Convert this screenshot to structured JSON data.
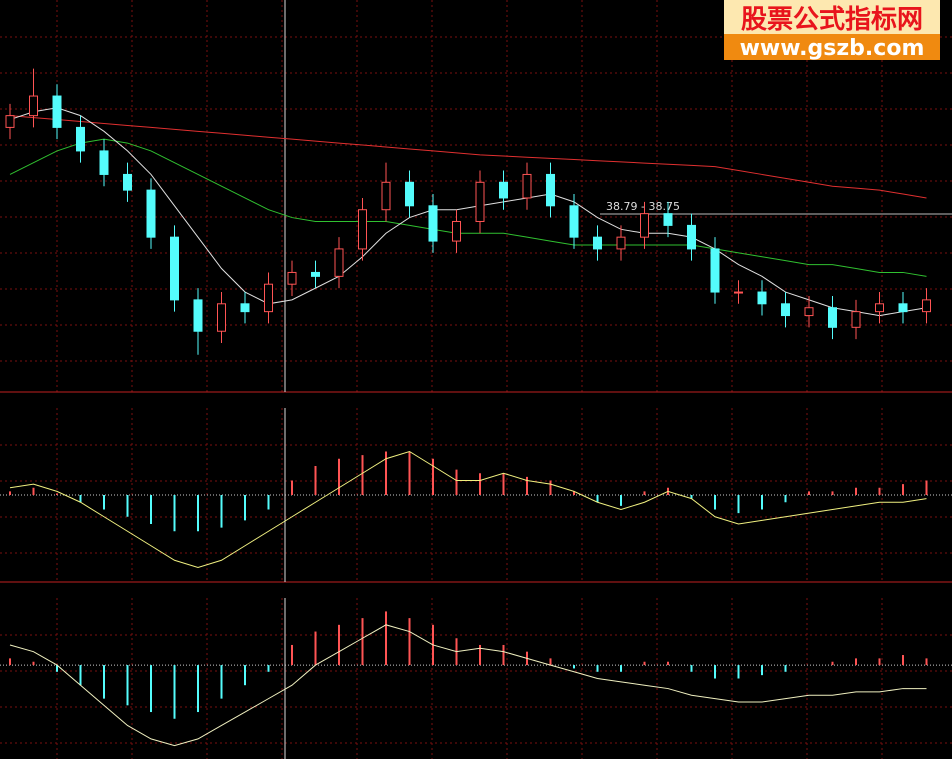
{
  "watermark": {
    "title": "股票公式指标网",
    "url": "www.gszb.com"
  },
  "chart_data": {
    "type": "candlestick",
    "price_label": "38.79 - 38.75",
    "price_line": 38.79,
    "ylim": [
      34.25,
      44.25
    ],
    "open": [
      41.0,
      41.3,
      41.8,
      41.0,
      40.4,
      39.8,
      39.4,
      38.2,
      36.6,
      35.8,
      36.5,
      36.3,
      37.0,
      37.3,
      37.2,
      37.9,
      38.9,
      39.6,
      39.0,
      38.1,
      38.6,
      39.6,
      39.2,
      39.8,
      39.0,
      38.2,
      37.9,
      38.2,
      38.8,
      38.5,
      37.9,
      36.8,
      36.8,
      36.5,
      36.2,
      36.4,
      35.9,
      36.3,
      36.5,
      36.3
    ],
    "high": [
      41.6,
      42.5,
      42.1,
      41.3,
      40.7,
      40.1,
      39.7,
      38.5,
      36.9,
      36.8,
      36.8,
      37.3,
      37.6,
      37.6,
      38.2,
      39.2,
      40.1,
      39.9,
      39.3,
      38.9,
      39.9,
      39.9,
      40.1,
      40.1,
      39.3,
      38.5,
      38.5,
      39.1,
      39.1,
      38.8,
      38.2,
      37.1,
      37.1,
      36.8,
      36.7,
      36.7,
      36.6,
      36.8,
      36.8,
      36.9
    ],
    "low": [
      40.7,
      41.0,
      40.7,
      40.1,
      39.5,
      39.1,
      37.9,
      36.3,
      35.2,
      35.5,
      36.0,
      36.0,
      36.7,
      36.9,
      36.9,
      37.6,
      38.6,
      38.7,
      37.8,
      37.8,
      38.3,
      38.9,
      38.9,
      38.7,
      37.9,
      37.6,
      37.6,
      37.9,
      38.2,
      37.6,
      36.5,
      36.5,
      36.2,
      35.9,
      35.9,
      35.6,
      35.6,
      36.0,
      36.0,
      36.0
    ],
    "close": [
      41.3,
      41.8,
      41.0,
      40.4,
      39.8,
      39.4,
      38.2,
      36.6,
      35.8,
      36.5,
      36.3,
      37.0,
      37.3,
      37.2,
      37.9,
      38.9,
      39.6,
      39.0,
      38.1,
      38.6,
      39.6,
      39.2,
      39.8,
      39.0,
      38.2,
      37.9,
      38.2,
      38.8,
      38.5,
      37.9,
      36.8,
      36.8,
      36.5,
      36.2,
      36.4,
      35.9,
      36.3,
      36.5,
      36.3,
      36.6
    ],
    "up_color": "#ff5454",
    "down_color": "#54fcfc",
    "lines": [
      {
        "color": "#e03030",
        "values": [
          41.3,
          41.25,
          41.2,
          41.15,
          41.1,
          41.05,
          41.0,
          40.95,
          40.9,
          40.85,
          40.8,
          40.75,
          40.7,
          40.65,
          40.6,
          40.55,
          40.5,
          40.45,
          40.4,
          40.35,
          40.3,
          40.27,
          40.24,
          40.21,
          40.18,
          40.15,
          40.12,
          40.09,
          40.06,
          40.03,
          40.0,
          39.9,
          39.8,
          39.7,
          39.6,
          39.5,
          39.45,
          39.4,
          39.3,
          39.2
        ]
      },
      {
        "color": "#30c030",
        "values": [
          39.8,
          40.1,
          40.4,
          40.6,
          40.7,
          40.6,
          40.4,
          40.1,
          39.8,
          39.5,
          39.2,
          38.9,
          38.7,
          38.6,
          38.6,
          38.6,
          38.6,
          38.5,
          38.4,
          38.3,
          38.3,
          38.3,
          38.2,
          38.1,
          38.0,
          38.0,
          38.0,
          38.0,
          38.0,
          38.0,
          37.9,
          37.8,
          37.7,
          37.6,
          37.5,
          37.5,
          37.4,
          37.3,
          37.3,
          37.2
        ]
      },
      {
        "color": "#e0e0e0",
        "values": [
          41.2,
          41.4,
          41.5,
          41.3,
          40.9,
          40.4,
          39.8,
          39.0,
          38.2,
          37.4,
          36.8,
          36.5,
          36.6,
          36.9,
          37.2,
          37.7,
          38.3,
          38.7,
          38.9,
          38.9,
          39.0,
          39.1,
          39.2,
          39.3,
          39.1,
          38.7,
          38.4,
          38.3,
          38.3,
          38.2,
          37.9,
          37.5,
          37.2,
          36.8,
          36.6,
          36.4,
          36.3,
          36.2,
          36.3,
          36.4
        ]
      }
    ],
    "indicators": [
      {
        "ylim": [
          -1.2,
          1.2
        ],
        "line_color": "#f0f080",
        "hist": [
          0.05,
          0.1,
          0.02,
          -0.1,
          -0.2,
          -0.3,
          -0.4,
          -0.5,
          -0.5,
          -0.45,
          -0.35,
          -0.2,
          0.2,
          0.4,
          0.5,
          0.55,
          0.6,
          0.6,
          0.5,
          0.35,
          0.3,
          0.3,
          0.25,
          0.2,
          0.05,
          -0.1,
          -0.15,
          0.05,
          0.1,
          -0.05,
          -0.2,
          -0.25,
          -0.2,
          -0.1,
          0.05,
          0.05,
          0.1,
          0.1,
          0.15,
          0.2
        ],
        "line": [
          0.1,
          0.15,
          0.05,
          -0.1,
          -0.3,
          -0.5,
          -0.7,
          -0.9,
          -1.0,
          -0.9,
          -0.7,
          -0.5,
          -0.3,
          -0.1,
          0.1,
          0.3,
          0.5,
          0.6,
          0.4,
          0.2,
          0.2,
          0.3,
          0.2,
          0.15,
          0.05,
          -0.1,
          -0.2,
          -0.1,
          0.05,
          -0.05,
          -0.3,
          -0.4,
          -0.35,
          -0.3,
          -0.25,
          -0.2,
          -0.15,
          -0.1,
          -0.1,
          -0.05
        ]
      },
      {
        "ylim": [
          -1.4,
          1.0
        ],
        "line_color": "#f0f0c0",
        "hist": [
          0.1,
          0.05,
          -0.1,
          -0.3,
          -0.5,
          -0.6,
          -0.7,
          -0.8,
          -0.7,
          -0.5,
          -0.3,
          -0.1,
          0.3,
          0.5,
          0.6,
          0.7,
          0.8,
          0.7,
          0.6,
          0.4,
          0.3,
          0.3,
          0.2,
          0.1,
          -0.05,
          -0.1,
          -0.1,
          0.05,
          0.05,
          -0.1,
          -0.2,
          -0.2,
          -0.15,
          -0.1,
          0.0,
          0.05,
          0.1,
          0.1,
          0.15,
          0.1
        ],
        "line": [
          0.3,
          0.2,
          0.0,
          -0.3,
          -0.6,
          -0.9,
          -1.1,
          -1.2,
          -1.1,
          -0.9,
          -0.7,
          -0.5,
          -0.3,
          0.0,
          0.2,
          0.4,
          0.6,
          0.5,
          0.3,
          0.2,
          0.25,
          0.2,
          0.1,
          0.0,
          -0.1,
          -0.2,
          -0.25,
          -0.3,
          -0.35,
          -0.45,
          -0.5,
          -0.55,
          -0.55,
          -0.5,
          -0.45,
          -0.45,
          -0.4,
          -0.4,
          -0.35,
          -0.35
        ]
      }
    ]
  }
}
